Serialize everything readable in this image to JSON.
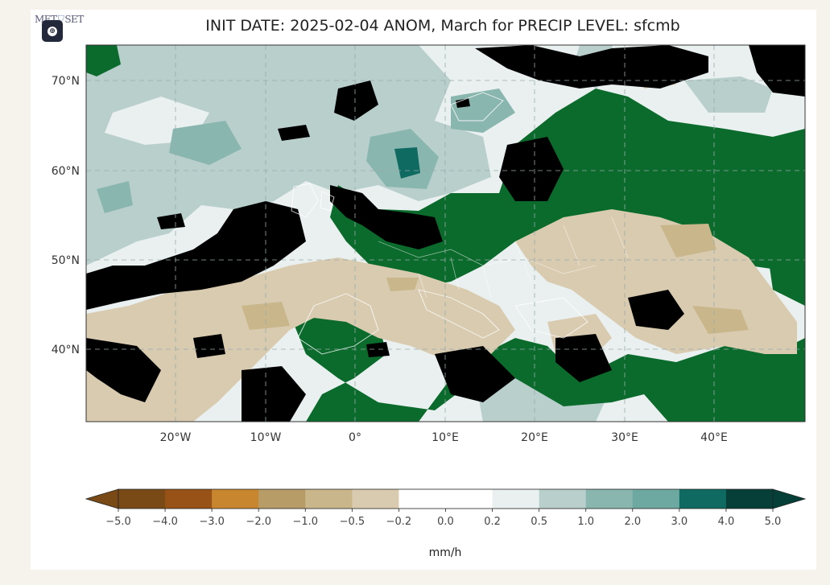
{
  "logo_text": [
    "MET",
    "SET"
  ],
  "title": "INIT DATE: 2025-02-04 ANOM, March for PRECIP LEVEL: sfcmb",
  "lat_labels": [
    "70°N",
    "60°N",
    "50°N",
    "40°N"
  ],
  "lon_labels": [
    "20°W",
    "10°W",
    "0°",
    "10°E",
    "20°E",
    "30°E",
    "40°E"
  ],
  "colorbar": {
    "ticks": [
      "−5.0",
      "−4.0",
      "−3.0",
      "−2.0",
      "−1.0",
      "−0.5",
      "−0.2",
      "0.0",
      "0.2",
      "0.5",
      "1.0",
      "2.0",
      "3.0",
      "4.0",
      "5.0"
    ],
    "colors": [
      "#7a4a16",
      "#985217",
      "#c8872e",
      "#b89c68",
      "#c9b78b",
      "#d8cbb0",
      "#ffffff",
      "#ffffff",
      "#e9f0ef",
      "#b9cfcc",
      "#8ab6b0",
      "#6ea9a1",
      "#0f6a62",
      "#053f38"
    ],
    "under_color": "#7a4a16",
    "over_color": "#053f38",
    "unit": "mm/h"
  },
  "colors": {
    "ocean_light": "#e9f0ef",
    "anom_blue": "#b9cfcc",
    "anom_teal": "#8ab6b0",
    "dark_teal": "#0f6a62",
    "tan": "#d8cbb0",
    "tan_dark": "#c9b78b",
    "green": "#0b6b2c",
    "black": "#000000"
  }
}
